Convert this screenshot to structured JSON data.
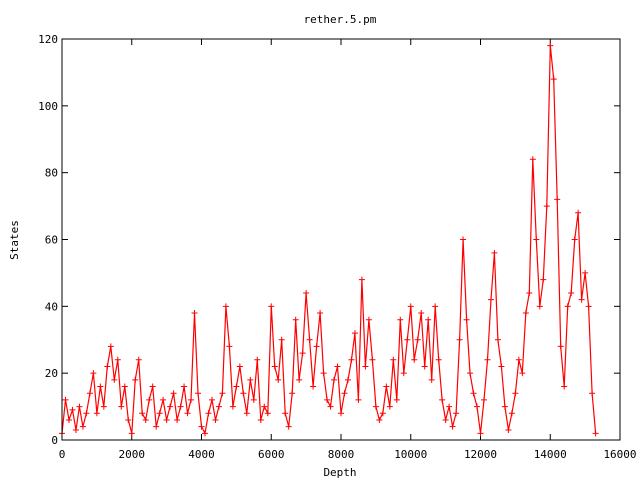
{
  "chart_data": {
    "type": "scatter",
    "title": "rether.5.pm",
    "xlabel": "Depth",
    "ylabel": "States",
    "xlim": [
      0,
      16000
    ],
    "ylim": [
      0,
      120
    ],
    "xticks": [
      "0",
      "2000",
      "4000",
      "6000",
      "8000",
      "10000",
      "12000",
      "14000",
      "16000"
    ],
    "yticks": [
      "0",
      "20",
      "40",
      "60",
      "80",
      "100",
      "120"
    ],
    "grid": false,
    "legend": "none",
    "marker": "+",
    "color": "#ff0000",
    "connected": true,
    "series": [
      {
        "x": [
          0,
          100,
          200,
          300,
          400,
          500,
          600,
          700,
          800,
          900,
          1000,
          1100,
          1200,
          1300,
          1400,
          1500,
          1600,
          1700,
          1800,
          1900,
          2000,
          2100,
          2200,
          2300,
          2400,
          2500,
          2600,
          2700,
          2800,
          2900,
          3000,
          3100,
          3200,
          3300,
          3400,
          3500,
          3600,
          3700,
          3800,
          3900,
          4000,
          4100,
          4200,
          4300,
          4400,
          4500,
          4600,
          4700,
          4800,
          4900,
          5000,
          5100,
          5200,
          5300,
          5400,
          5500,
          5600,
          5700,
          5800,
          5900,
          6000,
          6100,
          6200,
          6300,
          6400,
          6500,
          6600,
          6700,
          6800,
          6900,
          7000,
          7100,
          7200,
          7300,
          7400,
          7500,
          7600,
          7700,
          7800,
          7900,
          8000,
          8100,
          8200,
          8300,
          8400,
          8500,
          8600,
          8700,
          8800,
          8900,
          9000,
          9100,
          9200,
          9300,
          9400,
          9500,
          9600,
          9700,
          9800,
          9900,
          10000,
          10100,
          10200,
          10300,
          10400,
          10500,
          10600,
          10700,
          10800,
          10900,
          11000,
          11100,
          11200,
          11300,
          11400,
          11500,
          11600,
          11700,
          11800,
          11900,
          12000,
          12100,
          12200,
          12300,
          12400,
          12500,
          12600,
          12700,
          12800,
          12900,
          13000,
          13100,
          13200,
          13300,
          13400,
          13500,
          13600,
          13700,
          13800,
          13900,
          14000,
          14100,
          14200,
          14300,
          14400,
          14500,
          14600,
          14700,
          14800,
          14900,
          15000,
          15100,
          15200,
          15300
        ],
        "y": [
          2,
          12,
          6,
          9,
          3,
          10,
          4,
          8,
          14,
          20,
          8,
          16,
          10,
          22,
          28,
          18,
          24,
          10,
          16,
          6,
          2,
          18,
          24,
          8,
          6,
          12,
          16,
          4,
          8,
          12,
          6,
          10,
          14,
          6,
          10,
          16,
          8,
          12,
          38,
          14,
          4,
          2,
          8,
          12,
          6,
          10,
          14,
          40,
          28,
          10,
          16,
          22,
          14,
          8,
          18,
          12,
          24,
          6,
          10,
          8,
          40,
          22,
          18,
          30,
          8,
          4,
          14,
          36,
          18,
          26,
          44,
          30,
          16,
          28,
          38,
          20,
          12,
          10,
          18,
          22,
          8,
          14,
          18,
          24,
          32,
          12,
          48,
          22,
          36,
          24,
          10,
          6,
          8,
          16,
          10,
          24,
          12,
          36,
          20,
          30,
          40,
          24,
          30,
          38,
          22,
          36,
          18,
          40,
          24,
          12,
          6,
          10,
          4,
          8,
          30,
          60,
          36,
          20,
          14,
          10,
          2,
          12,
          24,
          42,
          56,
          30,
          22,
          10,
          3,
          8,
          14,
          24,
          20,
          38,
          44,
          84,
          60,
          40,
          48,
          70,
          118,
          108,
          72,
          28,
          16,
          40,
          44,
          60,
          68,
          42,
          50,
          40,
          14,
          2
        ]
      }
    ]
  }
}
